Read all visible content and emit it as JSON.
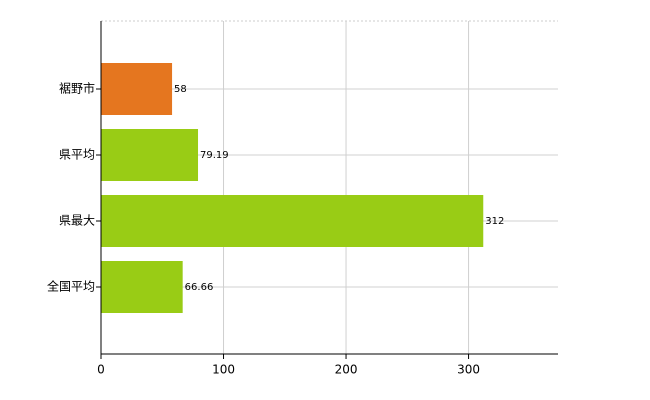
{
  "chart_data": {
    "type": "bar",
    "orientation": "horizontal",
    "categories": [
      "裾野市",
      "県平均",
      "県最大",
      "全国平均"
    ],
    "values": [
      58,
      79.19,
      312,
      66.66
    ],
    "colors": [
      "#e5761f",
      "#99cc15",
      "#99cc15",
      "#99cc15"
    ],
    "xlim": [
      0,
      373
    ],
    "xticks": [
      0,
      100,
      200,
      300
    ],
    "grid": true
  }
}
